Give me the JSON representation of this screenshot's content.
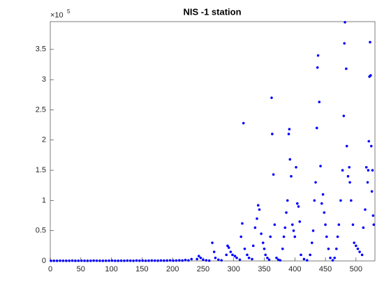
{
  "chart_data": {
    "type": "scatter",
    "title": "NIS -1 station",
    "axis_multiplier": "×10",
    "axis_exponent": "5",
    "color": "#0000ff",
    "xlim": [
      0,
      531
    ],
    "xticks": [
      0,
      50,
      100,
      150,
      200,
      250,
      300,
      350,
      400,
      450,
      500
    ],
    "ylim": [
      0,
      396000
    ],
    "yticks": [
      {
        "value": 0,
        "label": "0"
      },
      {
        "value": 50000,
        "label": "0.5"
      },
      {
        "value": 100000,
        "label": "1"
      },
      {
        "value": 150000,
        "label": "1.5"
      },
      {
        "value": 200000,
        "label": "2"
      },
      {
        "value": 250000,
        "label": "2.5"
      },
      {
        "value": 300000,
        "label": "3"
      },
      {
        "value": 350000,
        "label": "3.5"
      }
    ],
    "x": [
      1,
      6,
      11,
      16,
      21,
      26,
      31,
      36,
      41,
      46,
      51,
      56,
      61,
      66,
      71,
      76,
      81,
      86,
      91,
      96,
      101,
      106,
      111,
      116,
      121,
      126,
      131,
      136,
      141,
      146,
      151,
      156,
      161,
      166,
      171,
      176,
      181,
      186,
      191,
      196,
      201,
      206,
      211,
      216,
      221,
      226,
      231,
      240,
      243,
      246,
      250,
      255,
      260,
      265,
      268,
      270,
      275,
      280,
      288,
      290,
      292,
      295,
      298,
      302,
      305,
      310,
      312,
      314,
      316,
      318,
      322,
      325,
      330,
      332,
      335,
      338,
      340,
      342,
      345,
      348,
      350,
      352,
      355,
      358,
      360,
      362,
      363,
      365,
      367,
      370,
      373,
      376,
      380,
      382,
      384,
      386,
      388,
      390,
      391,
      392,
      394,
      396,
      398,
      400,
      402,
      404,
      406,
      408,
      410,
      415,
      420,
      425,
      428,
      430,
      432,
      434,
      436,
      437,
      438,
      440,
      442,
      444,
      446,
      448,
      450,
      452,
      455,
      458,
      462,
      465,
      468,
      470,
      472,
      475,
      478,
      480,
      481,
      482,
      484,
      485,
      487,
      489,
      490,
      492,
      495,
      497,
      500,
      503,
      506,
      510,
      512,
      515,
      517,
      519,
      520,
      521,
      522,
      523,
      524,
      525,
      526,
      527,
      528,
      529
    ],
    "values": [
      200,
      300,
      200,
      400,
      300,
      200,
      300,
      500,
      200,
      300,
      400,
      300,
      200,
      300,
      500,
      400,
      300,
      200,
      300,
      400,
      500,
      300,
      200,
      400,
      300,
      500,
      400,
      300,
      600,
      400,
      500,
      300,
      400,
      600,
      500,
      400,
      700,
      500,
      600,
      800,
      500,
      700,
      900,
      600,
      1500,
      800,
      3000,
      3000,
      8000,
      5000,
      2000,
      1000,
      500,
      30000,
      15000,
      5000,
      2000,
      1000,
      10000,
      25000,
      22000,
      15000,
      10000,
      8000,
      5000,
      2000,
      40000,
      62000,
      228000,
      20000,
      10000,
      5000,
      3000,
      25000,
      55000,
      70000,
      92000,
      85000,
      45000,
      30000,
      20000,
      10000,
      5000,
      2000,
      40000,
      270000,
      210000,
      143000,
      60000,
      5000,
      2000,
      1000,
      20000,
      40000,
      55000,
      80000,
      100000,
      210000,
      218000,
      168000,
      140000,
      60000,
      50000,
      40000,
      155000,
      95000,
      90000,
      65000,
      10000,
      3000,
      1000,
      10000,
      30000,
      50000,
      100000,
      130000,
      220000,
      320000,
      340000,
      263000,
      157000,
      95000,
      110000,
      80000,
      60000,
      40000,
      20000,
      5000,
      1000,
      5000,
      20000,
      40000,
      60000,
      100000,
      150000,
      240000,
      360000,
      395000,
      318000,
      190000,
      140000,
      155000,
      130000,
      100000,
      60000,
      30000,
      25000,
      20000,
      15000,
      10000,
      55000,
      85000,
      155000,
      130000,
      150000,
      198000,
      305000,
      362000,
      307000,
      190000,
      115000,
      150000,
      75000,
      60000
    ]
  }
}
